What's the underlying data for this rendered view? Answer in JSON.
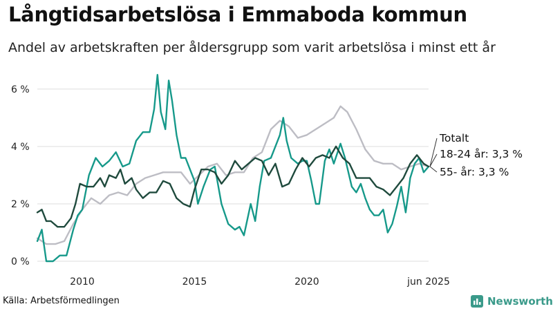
{
  "title": "Långtidsarbetslösa i Emmaboda kommun",
  "subtitle": "Andel av arbetskraften per åldersgrupp som varit arbetslösa i minst ett år",
  "source": "Källa: Arbetsförmedlingen",
  "brand": "Newsworthy",
  "colors": {
    "total": "#1f4a3d",
    "youth": "#16998a",
    "senior": "#bdbdc4",
    "grid": "#dcdcdc",
    "brand": "#3a9a8a"
  },
  "chart_data": {
    "type": "line",
    "x_ticks": [
      {
        "value": 2010,
        "label": "2010"
      },
      {
        "value": 2015,
        "label": "2015"
      },
      {
        "value": 2020,
        "label": "2020"
      },
      {
        "value": 2025.42,
        "label": "jun 2025"
      }
    ],
    "y_ticks": [
      {
        "value": 0,
        "label": "0 %"
      },
      {
        "value": 2,
        "label": "2 %"
      },
      {
        "value": 4,
        "label": "4 %"
      },
      {
        "value": 6,
        "label": "6 %"
      }
    ],
    "xlim": [
      2008.0,
      2025.42
    ],
    "ylim": [
      0,
      6.6
    ],
    "grid": true,
    "series": [
      {
        "name": "Totalt",
        "label": "Totalt",
        "color": "#1f4a3d",
        "points": [
          [
            2008.0,
            1.7
          ],
          [
            2008.2,
            1.8
          ],
          [
            2008.4,
            1.4
          ],
          [
            2008.6,
            1.4
          ],
          [
            2008.9,
            1.2
          ],
          [
            2009.2,
            1.2
          ],
          [
            2009.5,
            1.5
          ],
          [
            2009.7,
            2.0
          ],
          [
            2009.9,
            2.7
          ],
          [
            2010.2,
            2.6
          ],
          [
            2010.5,
            2.6
          ],
          [
            2010.8,
            2.9
          ],
          [
            2011.0,
            2.6
          ],
          [
            2011.2,
            3.0
          ],
          [
            2011.5,
            2.9
          ],
          [
            2011.7,
            3.2
          ],
          [
            2011.9,
            2.7
          ],
          [
            2012.2,
            2.9
          ],
          [
            2012.4,
            2.5
          ],
          [
            2012.7,
            2.2
          ],
          [
            2013.0,
            2.4
          ],
          [
            2013.3,
            2.4
          ],
          [
            2013.6,
            2.8
          ],
          [
            2013.9,
            2.7
          ],
          [
            2014.2,
            2.2
          ],
          [
            2014.5,
            2.0
          ],
          [
            2014.8,
            1.9
          ],
          [
            2015.0,
            2.5
          ],
          [
            2015.3,
            3.2
          ],
          [
            2015.6,
            3.2
          ],
          [
            2015.9,
            3.1
          ],
          [
            2016.2,
            2.7
          ],
          [
            2016.5,
            3.0
          ],
          [
            2016.8,
            3.5
          ],
          [
            2017.1,
            3.2
          ],
          [
            2017.4,
            3.4
          ],
          [
            2017.7,
            3.6
          ],
          [
            2018.0,
            3.5
          ],
          [
            2018.3,
            3.0
          ],
          [
            2018.6,
            3.4
          ],
          [
            2018.9,
            2.6
          ],
          [
            2019.2,
            2.7
          ],
          [
            2019.5,
            3.2
          ],
          [
            2019.8,
            3.6
          ],
          [
            2020.1,
            3.3
          ],
          [
            2020.4,
            3.6
          ],
          [
            2020.7,
            3.7
          ],
          [
            2021.0,
            3.6
          ],
          [
            2021.3,
            4.0
          ],
          [
            2021.6,
            3.6
          ],
          [
            2021.9,
            3.4
          ],
          [
            2022.2,
            2.9
          ],
          [
            2022.5,
            2.9
          ],
          [
            2022.8,
            2.9
          ],
          [
            2023.1,
            2.6
          ],
          [
            2023.4,
            2.5
          ],
          [
            2023.7,
            2.3
          ],
          [
            2024.0,
            2.6
          ],
          [
            2024.3,
            2.9
          ],
          [
            2024.6,
            3.4
          ],
          [
            2024.9,
            3.7
          ],
          [
            2025.2,
            3.4
          ],
          [
            2025.42,
            3.3
          ]
        ]
      },
      {
        "name": "18-24 år",
        "label": "18-24 år: 3,3 %",
        "color": "#16998a",
        "points": [
          [
            2008.0,
            0.7
          ],
          [
            2008.2,
            1.1
          ],
          [
            2008.4,
            0.0
          ],
          [
            2008.7,
            0.0
          ],
          [
            2009.0,
            0.2
          ],
          [
            2009.3,
            0.2
          ],
          [
            2009.6,
            1.1
          ],
          [
            2009.8,
            1.6
          ],
          [
            2010.0,
            1.8
          ],
          [
            2010.3,
            3.0
          ],
          [
            2010.6,
            3.6
          ],
          [
            2010.9,
            3.3
          ],
          [
            2011.2,
            3.5
          ],
          [
            2011.5,
            3.8
          ],
          [
            2011.8,
            3.3
          ],
          [
            2012.1,
            3.4
          ],
          [
            2012.4,
            4.2
          ],
          [
            2012.7,
            4.5
          ],
          [
            2013.0,
            4.5
          ],
          [
            2013.2,
            5.3
          ],
          [
            2013.35,
            6.5
          ],
          [
            2013.5,
            5.2
          ],
          [
            2013.7,
            4.6
          ],
          [
            2013.85,
            6.3
          ],
          [
            2014.0,
            5.6
          ],
          [
            2014.2,
            4.4
          ],
          [
            2014.4,
            3.6
          ],
          [
            2014.6,
            3.6
          ],
          [
            2014.8,
            3.2
          ],
          [
            2015.0,
            2.8
          ],
          [
            2015.15,
            2.0
          ],
          [
            2015.4,
            2.6
          ],
          [
            2015.7,
            3.2
          ],
          [
            2015.9,
            3.3
          ],
          [
            2016.2,
            2.0
          ],
          [
            2016.5,
            1.3
          ],
          [
            2016.8,
            1.1
          ],
          [
            2017.0,
            1.2
          ],
          [
            2017.2,
            0.9
          ],
          [
            2017.5,
            2.0
          ],
          [
            2017.7,
            1.4
          ],
          [
            2017.9,
            2.6
          ],
          [
            2018.1,
            3.5
          ],
          [
            2018.4,
            3.6
          ],
          [
            2018.6,
            4.0
          ],
          [
            2018.8,
            4.4
          ],
          [
            2018.95,
            5.0
          ],
          [
            2019.1,
            4.2
          ],
          [
            2019.3,
            3.6
          ],
          [
            2019.6,
            3.4
          ],
          [
            2019.8,
            3.5
          ],
          [
            2020.0,
            3.5
          ],
          [
            2020.2,
            2.8
          ],
          [
            2020.4,
            2.0
          ],
          [
            2020.55,
            2.0
          ],
          [
            2020.8,
            3.5
          ],
          [
            2021.0,
            3.9
          ],
          [
            2021.2,
            3.4
          ],
          [
            2021.5,
            4.1
          ],
          [
            2021.7,
            3.6
          ],
          [
            2022.0,
            2.6
          ],
          [
            2022.2,
            2.4
          ],
          [
            2022.4,
            2.7
          ],
          [
            2022.6,
            2.2
          ],
          [
            2022.8,
            1.8
          ],
          [
            2023.0,
            1.6
          ],
          [
            2023.2,
            1.6
          ],
          [
            2023.4,
            1.8
          ],
          [
            2023.6,
            1.0
          ],
          [
            2023.8,
            1.3
          ],
          [
            2024.0,
            1.9
          ],
          [
            2024.2,
            2.6
          ],
          [
            2024.4,
            1.7
          ],
          [
            2024.6,
            2.9
          ],
          [
            2024.8,
            3.4
          ],
          [
            2025.0,
            3.6
          ],
          [
            2025.2,
            3.1
          ],
          [
            2025.42,
            3.3
          ]
        ]
      },
      {
        "name": "55- år",
        "label": "55- år: 3,3 %",
        "color": "#bdbdc4",
        "points": [
          [
            2008.0,
            0.8
          ],
          [
            2008.4,
            0.6
          ],
          [
            2008.8,
            0.6
          ],
          [
            2009.2,
            0.7
          ],
          [
            2009.6,
            1.3
          ],
          [
            2010.0,
            1.8
          ],
          [
            2010.4,
            2.2
          ],
          [
            2010.8,
            2.0
          ],
          [
            2011.2,
            2.3
          ],
          [
            2011.6,
            2.4
          ],
          [
            2012.0,
            2.3
          ],
          [
            2012.4,
            2.7
          ],
          [
            2012.8,
            2.9
          ],
          [
            2013.2,
            3.0
          ],
          [
            2013.6,
            3.1
          ],
          [
            2014.0,
            3.1
          ],
          [
            2014.4,
            3.1
          ],
          [
            2014.8,
            2.7
          ],
          [
            2015.2,
            3.0
          ],
          [
            2015.6,
            3.3
          ],
          [
            2016.0,
            3.4
          ],
          [
            2016.4,
            3.0
          ],
          [
            2016.8,
            3.1
          ],
          [
            2017.2,
            3.1
          ],
          [
            2017.6,
            3.6
          ],
          [
            2018.0,
            3.8
          ],
          [
            2018.4,
            4.6
          ],
          [
            2018.8,
            4.9
          ],
          [
            2019.2,
            4.7
          ],
          [
            2019.6,
            4.3
          ],
          [
            2020.0,
            4.4
          ],
          [
            2020.4,
            4.6
          ],
          [
            2020.8,
            4.8
          ],
          [
            2021.2,
            5.0
          ],
          [
            2021.5,
            5.4
          ],
          [
            2021.8,
            5.2
          ],
          [
            2022.2,
            4.6
          ],
          [
            2022.6,
            3.9
          ],
          [
            2023.0,
            3.5
          ],
          [
            2023.4,
            3.4
          ],
          [
            2023.8,
            3.4
          ],
          [
            2024.2,
            3.2
          ],
          [
            2024.6,
            3.3
          ],
          [
            2025.0,
            3.4
          ],
          [
            2025.42,
            3.3
          ]
        ]
      }
    ]
  }
}
